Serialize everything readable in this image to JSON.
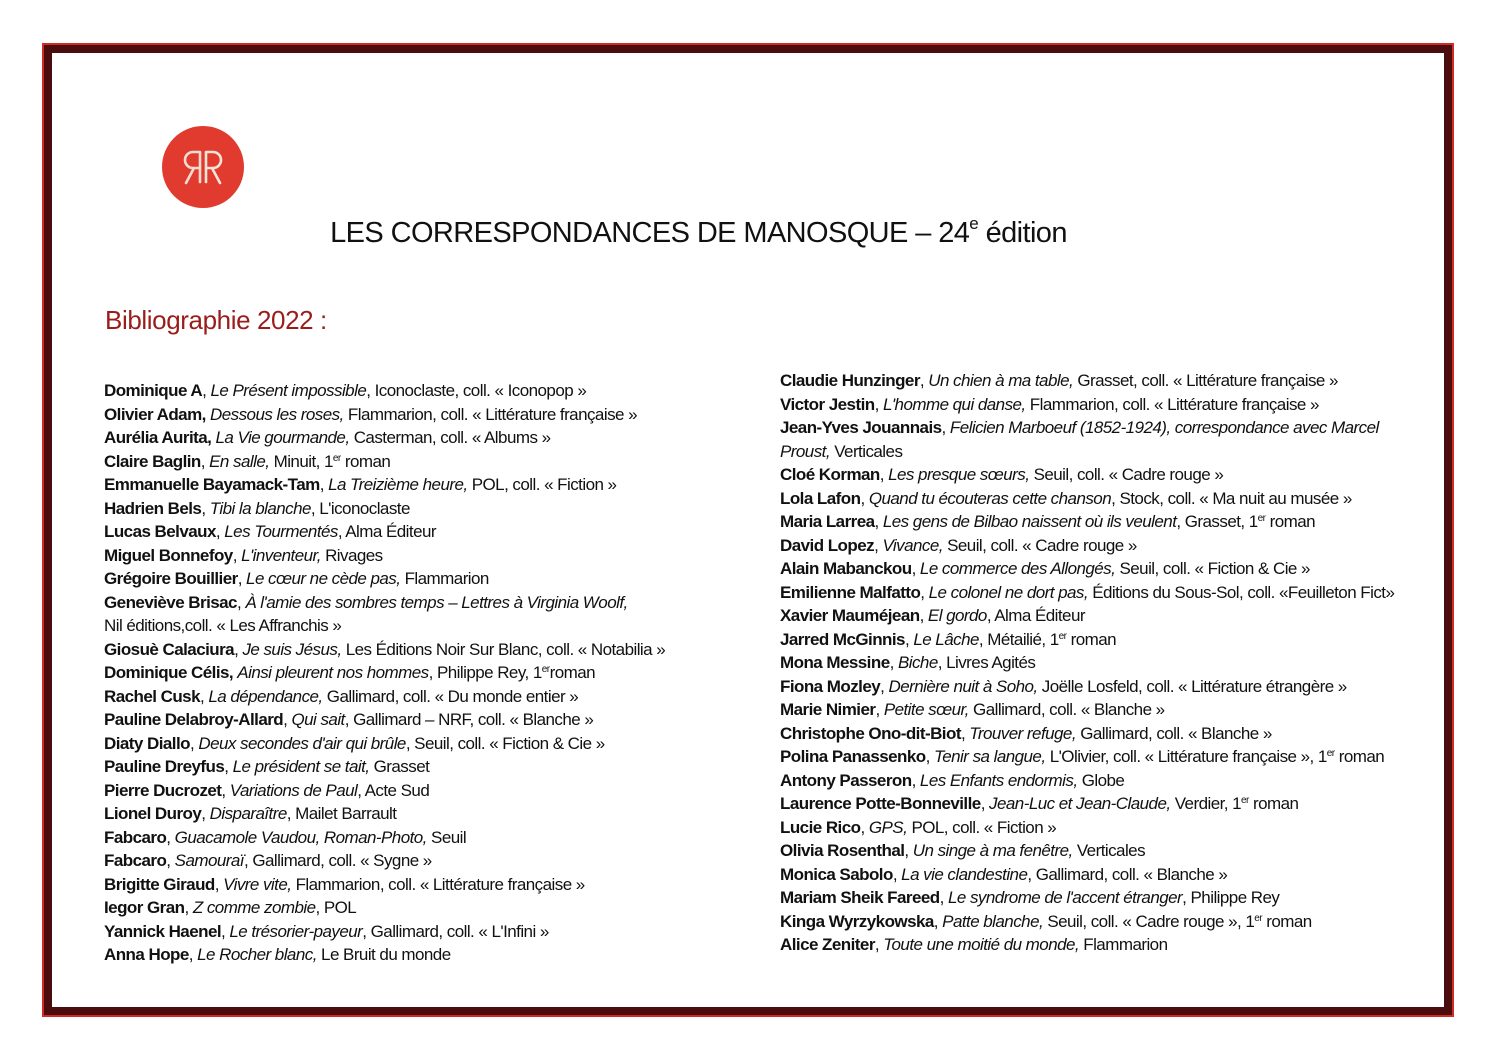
{
  "logo": {
    "text": "RR",
    "color": "#e13b2f"
  },
  "header": {
    "title_main": "LES CORRESPONDANCES DE MANOSQUE – 24",
    "title_sup": "e",
    "title_end": " édition"
  },
  "subtitle": "Bibliographie 2022 :",
  "colors": {
    "border_outer": "#d42a25",
    "border_inner": "#4a0c0c",
    "subtitle": "#9a1d1b"
  },
  "left_column": [
    [
      {
        "s": "b",
        "t": "Dominique A"
      },
      {
        "s": "n",
        "t": ", "
      },
      {
        "s": "i",
        "t": "Le Présent impossible"
      },
      {
        "s": "n",
        "t": ", Iconoclaste, coll. « Iconopop »"
      }
    ],
    [
      {
        "s": "b",
        "t": "Olivier Adam,"
      },
      {
        "s": "n",
        "t": " "
      },
      {
        "s": "i",
        "t": "Dessous les roses,"
      },
      {
        "s": "n",
        "t": " Flammarion, coll. « Littérature française »"
      }
    ],
    [
      {
        "s": "b",
        "t": "Aurélia Aurita,"
      },
      {
        "s": "n",
        "t": " "
      },
      {
        "s": "i",
        "t": "La Vie gourmande,"
      },
      {
        "s": "n",
        "t": " Casterman, coll. « Albums »"
      }
    ],
    [
      {
        "s": "b",
        "t": "Claire Baglin"
      },
      {
        "s": "n",
        "t": ", "
      },
      {
        "s": "i",
        "t": "En salle,"
      },
      {
        "s": "n",
        "t": " Minuit, 1"
      },
      {
        "s": "sup",
        "t": "er"
      },
      {
        "s": "n",
        "t": " roman"
      }
    ],
    [
      {
        "s": "b",
        "t": "Emmanuelle Bayamack-Tam"
      },
      {
        "s": "n",
        "t": ", "
      },
      {
        "s": "i",
        "t": "La Treizième heure,"
      },
      {
        "s": "n",
        "t": " POL, coll. « Fiction »"
      }
    ],
    [
      {
        "s": "b",
        "t": "Hadrien Bels"
      },
      {
        "s": "n",
        "t": ", "
      },
      {
        "s": "i",
        "t": "Tibi la blanche"
      },
      {
        "s": "n",
        "t": ", L'iconoclaste"
      }
    ],
    [
      {
        "s": "b",
        "t": "Lucas Belvaux"
      },
      {
        "s": "n",
        "t": ", "
      },
      {
        "s": "i",
        "t": "Les Tourmentés"
      },
      {
        "s": "n",
        "t": ", Alma Éditeur"
      }
    ],
    [
      {
        "s": "b",
        "t": "Miguel Bonnefoy"
      },
      {
        "s": "n",
        "t": ", "
      },
      {
        "s": "i",
        "t": "L'inventeur,"
      },
      {
        "s": "n",
        "t": " Rivages"
      }
    ],
    [
      {
        "s": "b",
        "t": "Grégoire Bouillier"
      },
      {
        "s": "n",
        "t": ", "
      },
      {
        "s": "i",
        "t": "Le cœur ne cède pas,"
      },
      {
        "s": "n",
        "t": " Flammarion"
      }
    ],
    [
      {
        "s": "b",
        "t": "Geneviève Brisac"
      },
      {
        "s": "n",
        "t": ", "
      },
      {
        "s": "i",
        "t": "À l'amie des sombres temps – Lettres à Virginia Woolf,"
      },
      {
        "s": "br",
        "t": ""
      },
      {
        "s": "n",
        "t": "Nil éditions,coll. « Les Affranchis »"
      }
    ],
    [
      {
        "s": "b",
        "t": "Giosuè Calaciura"
      },
      {
        "s": "n",
        "t": ", "
      },
      {
        "s": "i",
        "t": "Je suis Jésus,"
      },
      {
        "s": "n",
        "t": " Les Éditions Noir Sur Blanc, coll. « Notabilia »"
      }
    ],
    [
      {
        "s": "b",
        "t": "Dominique Célis,"
      },
      {
        "s": "n",
        "t": " "
      },
      {
        "s": "i",
        "t": "Ainsi pleurent nos hommes"
      },
      {
        "s": "n",
        "t": ", Philippe Rey, 1"
      },
      {
        "s": "sup",
        "t": "er"
      },
      {
        "s": "n",
        "t": "roman"
      }
    ],
    [
      {
        "s": "b",
        "t": "Rachel Cusk"
      },
      {
        "s": "n",
        "t": ", "
      },
      {
        "s": "i",
        "t": "La dépendance,"
      },
      {
        "s": "n",
        "t": " Gallimard, coll. « Du monde entier »"
      }
    ],
    [
      {
        "s": "b",
        "t": "Pauline Delabroy-Allard"
      },
      {
        "s": "n",
        "t": ", "
      },
      {
        "s": "i",
        "t": "Qui sait"
      },
      {
        "s": "n",
        "t": ", Gallimard – NRF, coll. « Blanche »"
      }
    ],
    [
      {
        "s": "b",
        "t": "Diaty Diallo"
      },
      {
        "s": "n",
        "t": ", "
      },
      {
        "s": "i",
        "t": "Deux secondes d'air qui brûle"
      },
      {
        "s": "n",
        "t": ", Seuil, coll. « Fiction & Cie »"
      }
    ],
    [
      {
        "s": "b",
        "t": "Pauline Dreyfus"
      },
      {
        "s": "n",
        "t": ", "
      },
      {
        "s": "i",
        "t": "Le président se tait,"
      },
      {
        "s": "n",
        "t": " Grasset"
      }
    ],
    [
      {
        "s": "b",
        "t": "Pierre Ducrozet"
      },
      {
        "s": "n",
        "t": ", "
      },
      {
        "s": "i",
        "t": "Variations de Paul"
      },
      {
        "s": "n",
        "t": ", Acte Sud"
      }
    ],
    [
      {
        "s": "b",
        "t": "Lionel Duroy"
      },
      {
        "s": "n",
        "t": ", "
      },
      {
        "s": "i",
        "t": "Disparaître"
      },
      {
        "s": "n",
        "t": ", Mailet Barrault"
      }
    ],
    [
      {
        "s": "b",
        "t": "Fabcaro"
      },
      {
        "s": "n",
        "t": ", "
      },
      {
        "s": "i",
        "t": "Guacamole Vaudou, Roman-Photo,"
      },
      {
        "s": "n",
        "t": " Seuil"
      }
    ],
    [
      {
        "s": "b",
        "t": "Fabcaro"
      },
      {
        "s": "n",
        "t": ", "
      },
      {
        "s": "i",
        "t": "Samouraï"
      },
      {
        "s": "n",
        "t": ", Gallimard, coll. « Sygne »"
      }
    ],
    [
      {
        "s": "b",
        "t": "Brigitte Giraud"
      },
      {
        "s": "n",
        "t": ", "
      },
      {
        "s": "i",
        "t": "Vivre vite,"
      },
      {
        "s": "n",
        "t": " Flammarion, coll. « Littérature française »"
      }
    ],
    [
      {
        "s": "b",
        "t": "Iegor Gran"
      },
      {
        "s": "n",
        "t": ", "
      },
      {
        "s": "i",
        "t": "Z comme zombie"
      },
      {
        "s": "n",
        "t": ", POL"
      }
    ],
    [
      {
        "s": "b",
        "t": "Yannick Haenel"
      },
      {
        "s": "n",
        "t": ", "
      },
      {
        "s": "i",
        "t": "Le trésorier-payeur"
      },
      {
        "s": "n",
        "t": ", Gallimard, coll. « L'Infini »"
      }
    ],
    [
      {
        "s": "b",
        "t": "Anna Hope"
      },
      {
        "s": "n",
        "t": ", "
      },
      {
        "s": "i",
        "t": "Le Rocher blanc,"
      },
      {
        "s": "n",
        "t": " Le Bruit du monde"
      }
    ]
  ],
  "right_column": [
    [
      {
        "s": "b",
        "t": "Claudie Hunzinger"
      },
      {
        "s": "n",
        "t": ", "
      },
      {
        "s": "i",
        "t": "Un chien à ma table,"
      },
      {
        "s": "n",
        "t": " Grasset, coll. « Littérature française »"
      }
    ],
    [
      {
        "s": "b",
        "t": "Victor Jestin"
      },
      {
        "s": "n",
        "t": ", "
      },
      {
        "s": "i",
        "t": "L'homme qui danse,"
      },
      {
        "s": "n",
        "t": " Flammarion, coll. « Littérature française »"
      }
    ],
    [
      {
        "s": "b",
        "t": "Jean-Yves Jouannais"
      },
      {
        "s": "n",
        "t": ", "
      },
      {
        "s": "i",
        "t": "Felicien Marboeuf (1852-1924), correspondance avec Marcel"
      },
      {
        "s": "br",
        "t": ""
      },
      {
        "s": "i",
        "t": "Proust,"
      },
      {
        "s": "n",
        "t": " Verticales"
      }
    ],
    [
      {
        "s": "b",
        "t": "Cloé Korman"
      },
      {
        "s": "n",
        "t": ", "
      },
      {
        "s": "i",
        "t": "Les presque sœurs,"
      },
      {
        "s": "n",
        "t": " Seuil, coll. « Cadre rouge »"
      }
    ],
    [
      {
        "s": "b",
        "t": "Lola Lafon"
      },
      {
        "s": "n",
        "t": ", "
      },
      {
        "s": "i",
        "t": "Quand tu écouteras cette chanson"
      },
      {
        "s": "n",
        "t": ", Stock, coll. « Ma nuit au musée »"
      }
    ],
    [
      {
        "s": "b",
        "t": "Maria Larrea"
      },
      {
        "s": "n",
        "t": ", "
      },
      {
        "s": "i",
        "t": "Les gens de Bilbao naissent où ils veulent"
      },
      {
        "s": "n",
        "t": ", Grasset, 1"
      },
      {
        "s": "sup",
        "t": "er"
      },
      {
        "s": "n",
        "t": " roman"
      }
    ],
    [
      {
        "s": "b",
        "t": "David Lopez"
      },
      {
        "s": "n",
        "t": ", "
      },
      {
        "s": "i",
        "t": "Vivance,"
      },
      {
        "s": "n",
        "t": " Seuil, coll. « Cadre rouge »"
      }
    ],
    [
      {
        "s": "b",
        "t": "Alain Mabanckou"
      },
      {
        "s": "n",
        "t": ", "
      },
      {
        "s": "i",
        "t": "Le commerce des Allongés,"
      },
      {
        "s": "n",
        "t": " Seuil, coll. « Fiction & Cie »"
      }
    ],
    [
      {
        "s": "b",
        "t": "Emilienne Malfatto"
      },
      {
        "s": "n",
        "t": ", "
      },
      {
        "s": "i",
        "t": "Le colonel ne dort pas,"
      },
      {
        "s": "n",
        "t": " Éditions du Sous-Sol, coll. «Feuilleton Fict»"
      }
    ],
    [
      {
        "s": "b",
        "t": "Xavier Mauméjean"
      },
      {
        "s": "n",
        "t": ", "
      },
      {
        "s": "i",
        "t": "El gordo"
      },
      {
        "s": "n",
        "t": ", Alma Éditeur"
      }
    ],
    [
      {
        "s": "b",
        "t": "Jarred McGinnis"
      },
      {
        "s": "n",
        "t": ", "
      },
      {
        "s": "i",
        "t": "Le Lâche"
      },
      {
        "s": "n",
        "t": ", Métailié, 1"
      },
      {
        "s": "sup",
        "t": "er"
      },
      {
        "s": "n",
        "t": " roman"
      }
    ],
    [
      {
        "s": "b",
        "t": "Mona Messine"
      },
      {
        "s": "n",
        "t": ", "
      },
      {
        "s": "i",
        "t": "Biche"
      },
      {
        "s": "n",
        "t": ", Livres Agités"
      }
    ],
    [
      {
        "s": "b",
        "t": "Fiona Mozley"
      },
      {
        "s": "n",
        "t": ", "
      },
      {
        "s": "i",
        "t": "Dernière nuit à Soho,"
      },
      {
        "s": "n",
        "t": " Joëlle Losfeld, coll. « Littérature étrangère »"
      }
    ],
    [
      {
        "s": "b",
        "t": "Marie Nimier"
      },
      {
        "s": "n",
        "t": ", "
      },
      {
        "s": "i",
        "t": "Petite sœur,"
      },
      {
        "s": "n",
        "t": " Gallimard, coll. « Blanche »"
      }
    ],
    [
      {
        "s": "b",
        "t": "Christophe Ono-dit-Biot"
      },
      {
        "s": "n",
        "t": ", "
      },
      {
        "s": "i",
        "t": "Trouver refuge,"
      },
      {
        "s": "n",
        "t": " Gallimard, coll. « Blanche »"
      }
    ],
    [
      {
        "s": "b",
        "t": "Polina Panassenko"
      },
      {
        "s": "n",
        "t": ", "
      },
      {
        "s": "i",
        "t": "Tenir sa langue,"
      },
      {
        "s": "n",
        "t": " L'Olivier, coll. « Littérature française », 1"
      },
      {
        "s": "sup",
        "t": "er"
      },
      {
        "s": "n",
        "t": " roman"
      }
    ],
    [
      {
        "s": "b",
        "t": "Antony Passeron"
      },
      {
        "s": "n",
        "t": ", "
      },
      {
        "s": "i",
        "t": "Les Enfants endormis,"
      },
      {
        "s": "n",
        "t": " Globe"
      }
    ],
    [
      {
        "s": "b",
        "t": "Laurence Potte-Bonneville"
      },
      {
        "s": "n",
        "t": ", "
      },
      {
        "s": "i",
        "t": "Jean-Luc et Jean-Claude,"
      },
      {
        "s": "n",
        "t": " Verdier, 1"
      },
      {
        "s": "sup",
        "t": "er"
      },
      {
        "s": "n",
        "t": " roman"
      }
    ],
    [
      {
        "s": "b",
        "t": "Lucie Rico"
      },
      {
        "s": "n",
        "t": ", "
      },
      {
        "s": "i",
        "t": "GPS,"
      },
      {
        "s": "n",
        "t": " POL, coll. « Fiction »"
      }
    ],
    [
      {
        "s": "b",
        "t": "Olivia Rosenthal"
      },
      {
        "s": "n",
        "t": ", "
      },
      {
        "s": "i",
        "t": "Un singe à ma fenêtre,"
      },
      {
        "s": "n",
        "t": " Verticales"
      }
    ],
    [
      {
        "s": "b",
        "t": "Monica Sabolo"
      },
      {
        "s": "n",
        "t": ", "
      },
      {
        "s": "i",
        "t": "La vie clandestine"
      },
      {
        "s": "n",
        "t": ", Gallimard, coll. « Blanche »"
      }
    ],
    [
      {
        "s": "b",
        "t": "Mariam Sheik Fareed"
      },
      {
        "s": "n",
        "t": ", "
      },
      {
        "s": "i",
        "t": "Le syndrome de l'accent étranger"
      },
      {
        "s": "n",
        "t": ", Philippe Rey"
      }
    ],
    [
      {
        "s": "b",
        "t": "Kinga Wyrzykowska"
      },
      {
        "s": "n",
        "t": ", "
      },
      {
        "s": "i",
        "t": "Patte blanche,"
      },
      {
        "s": "n",
        "t": " Seuil, coll. « Cadre rouge », 1"
      },
      {
        "s": "sup",
        "t": "er"
      },
      {
        "s": "n",
        "t": " roman"
      }
    ],
    [
      {
        "s": "b",
        "t": "Alice Zeniter"
      },
      {
        "s": "n",
        "t": ", "
      },
      {
        "s": "i",
        "t": "Toute une moitié du monde,"
      },
      {
        "s": "n",
        "t": " Flammarion"
      }
    ]
  ]
}
